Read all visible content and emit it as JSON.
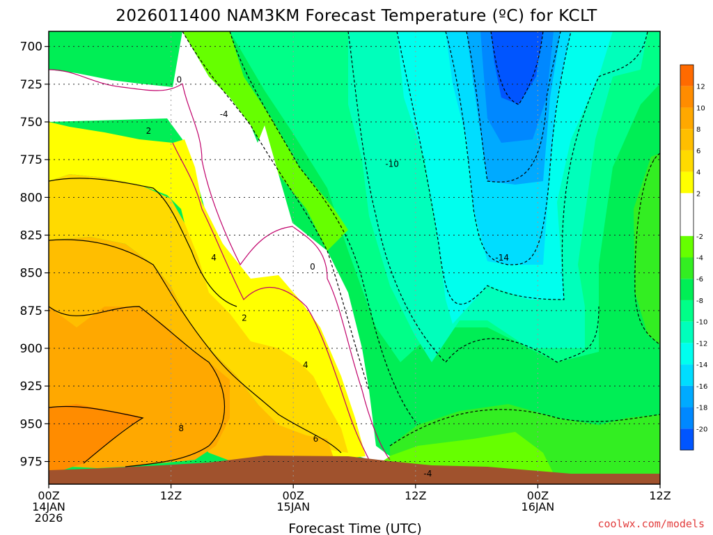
{
  "chart_data": {
    "type": "heatmap",
    "title": "2026011400 NAM3KM Forecast Temperature (ºC) for KCLT",
    "xlabel": "Forecast Time (UTC)",
    "ylabel": "",
    "credit": "coolwx.com/models",
    "y_axis": {
      "reversed": true,
      "ylim": [
        990,
        690
      ],
      "ticks": [
        700,
        725,
        750,
        775,
        800,
        825,
        850,
        875,
        900,
        925,
        950,
        975
      ]
    },
    "x_axis": {
      "xlim": [
        0,
        60
      ],
      "ticks": [
        {
          "hour": 0,
          "lines": [
            "00Z",
            "14JAN",
            "2026"
          ]
        },
        {
          "hour": 12,
          "lines": [
            "12Z"
          ]
        },
        {
          "hour": 24,
          "lines": [
            "00Z",
            "15JAN"
          ]
        },
        {
          "hour": 36,
          "lines": [
            "12Z"
          ]
        },
        {
          "hour": 48,
          "lines": [
            "00Z",
            "16JAN"
          ]
        },
        {
          "hour": 60,
          "lines": [
            "12Z"
          ]
        }
      ]
    },
    "grid": true,
    "colorbar": {
      "placement": "right",
      "bins": [
        {
          "from": 12,
          "to": 14,
          "color": "#ff6a00",
          "label": "12"
        },
        {
          "from": 10,
          "to": 12,
          "color": "#ff8c00",
          "label": "10"
        },
        {
          "from": 8,
          "to": 10,
          "color": "#ffa800",
          "label": "8"
        },
        {
          "from": 6,
          "to": 8,
          "color": "#ffbe00",
          "label": "6"
        },
        {
          "from": 4,
          "to": 6,
          "color": "#ffda00",
          "label": "4"
        },
        {
          "from": 2,
          "to": 4,
          "color": "#ffff00",
          "label": "2"
        },
        {
          "from": -2,
          "to": 2,
          "color": "#ffffff",
          "label": "-2"
        },
        {
          "from": -4,
          "to": -2,
          "color": "#66ff00",
          "label": "-4"
        },
        {
          "from": -6,
          "to": -4,
          "color": "#33ee22",
          "label": "-6"
        },
        {
          "from": -8,
          "to": -6,
          "color": "#00ee55",
          "label": "-8"
        },
        {
          "from": -10,
          "to": -8,
          "color": "#00ff88",
          "label": "-10"
        },
        {
          "from": -12,
          "to": -10,
          "color": "#00ffbb",
          "label": "-12"
        },
        {
          "from": -14,
          "to": -12,
          "color": "#00ffee",
          "label": "-14"
        },
        {
          "from": -16,
          "to": -14,
          "color": "#00ddff",
          "label": "-16"
        },
        {
          "from": -18,
          "to": -16,
          "color": "#00aaff",
          "label": "-18"
        },
        {
          "from": -20,
          "to": -18,
          "color": "#0088ff",
          "label": "-20"
        },
        {
          "from": -22,
          "to": -20,
          "color": "#0055ff",
          "label": ""
        }
      ]
    },
    "contour_labels": [
      {
        "text": "0",
        "hour": 12.8,
        "p": 722
      },
      {
        "text": "-4",
        "hour": 17.2,
        "p": 745
      },
      {
        "text": "2",
        "hour": 9.8,
        "p": 756
      },
      {
        "text": "-10",
        "hour": 33.7,
        "p": 778
      },
      {
        "text": "-14",
        "hour": 44.5,
        "p": 840
      },
      {
        "text": "4",
        "hour": 16.2,
        "p": 840
      },
      {
        "text": "0",
        "hour": 25.9,
        "p": 846
      },
      {
        "text": "2",
        "hour": 19.2,
        "p": 880
      },
      {
        "text": "4",
        "hour": 25.2,
        "p": 911
      },
      {
        "text": "8",
        "hour": 13.0,
        "p": 953
      },
      {
        "text": "6",
        "hour": 26.2,
        "p": 960
      },
      {
        "text": "-4",
        "hour": 37.2,
        "p": 983
      }
    ],
    "terrain_color": "#a0522d"
  }
}
